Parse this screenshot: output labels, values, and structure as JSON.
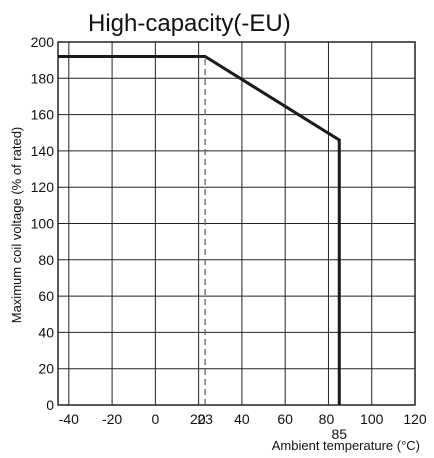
{
  "chart_data": {
    "type": "line",
    "title": "High-capacity(-EU)",
    "xlabel": "Ambient temperature (°C)",
    "ylabel": "Maximum coil voltage (% of rated)",
    "xlim": [
      -45,
      120
    ],
    "ylim": [
      0,
      200
    ],
    "x_ticks": [
      -40,
      -20,
      0,
      20,
      40,
      60,
      80,
      100,
      120
    ],
    "x_tick_labels": [
      "-40",
      "-20",
      "0",
      "20",
      "40",
      "60",
      "80",
      "100",
      "120"
    ],
    "y_ticks": [
      0,
      20,
      40,
      60,
      80,
      100,
      120,
      140,
      160,
      180,
      200
    ],
    "y_tick_labels": [
      "0",
      "20",
      "40",
      "60",
      "80",
      "100",
      "120",
      "140",
      "160",
      "180",
      "200"
    ],
    "grid": true,
    "series": [
      {
        "x": [
          -45,
          23,
          85,
          85
        ],
        "y": [
          192,
          192,
          146,
          0
        ]
      }
    ],
    "reference_lines": [
      {
        "x": 23,
        "y_from": 0,
        "y_to": 192,
        "style": "dashed",
        "label": "23"
      },
      {
        "x": 85,
        "label": "85"
      }
    ],
    "colors": {
      "line": "#1a1a1a",
      "grid": "#222222",
      "reference": "#666666"
    }
  }
}
